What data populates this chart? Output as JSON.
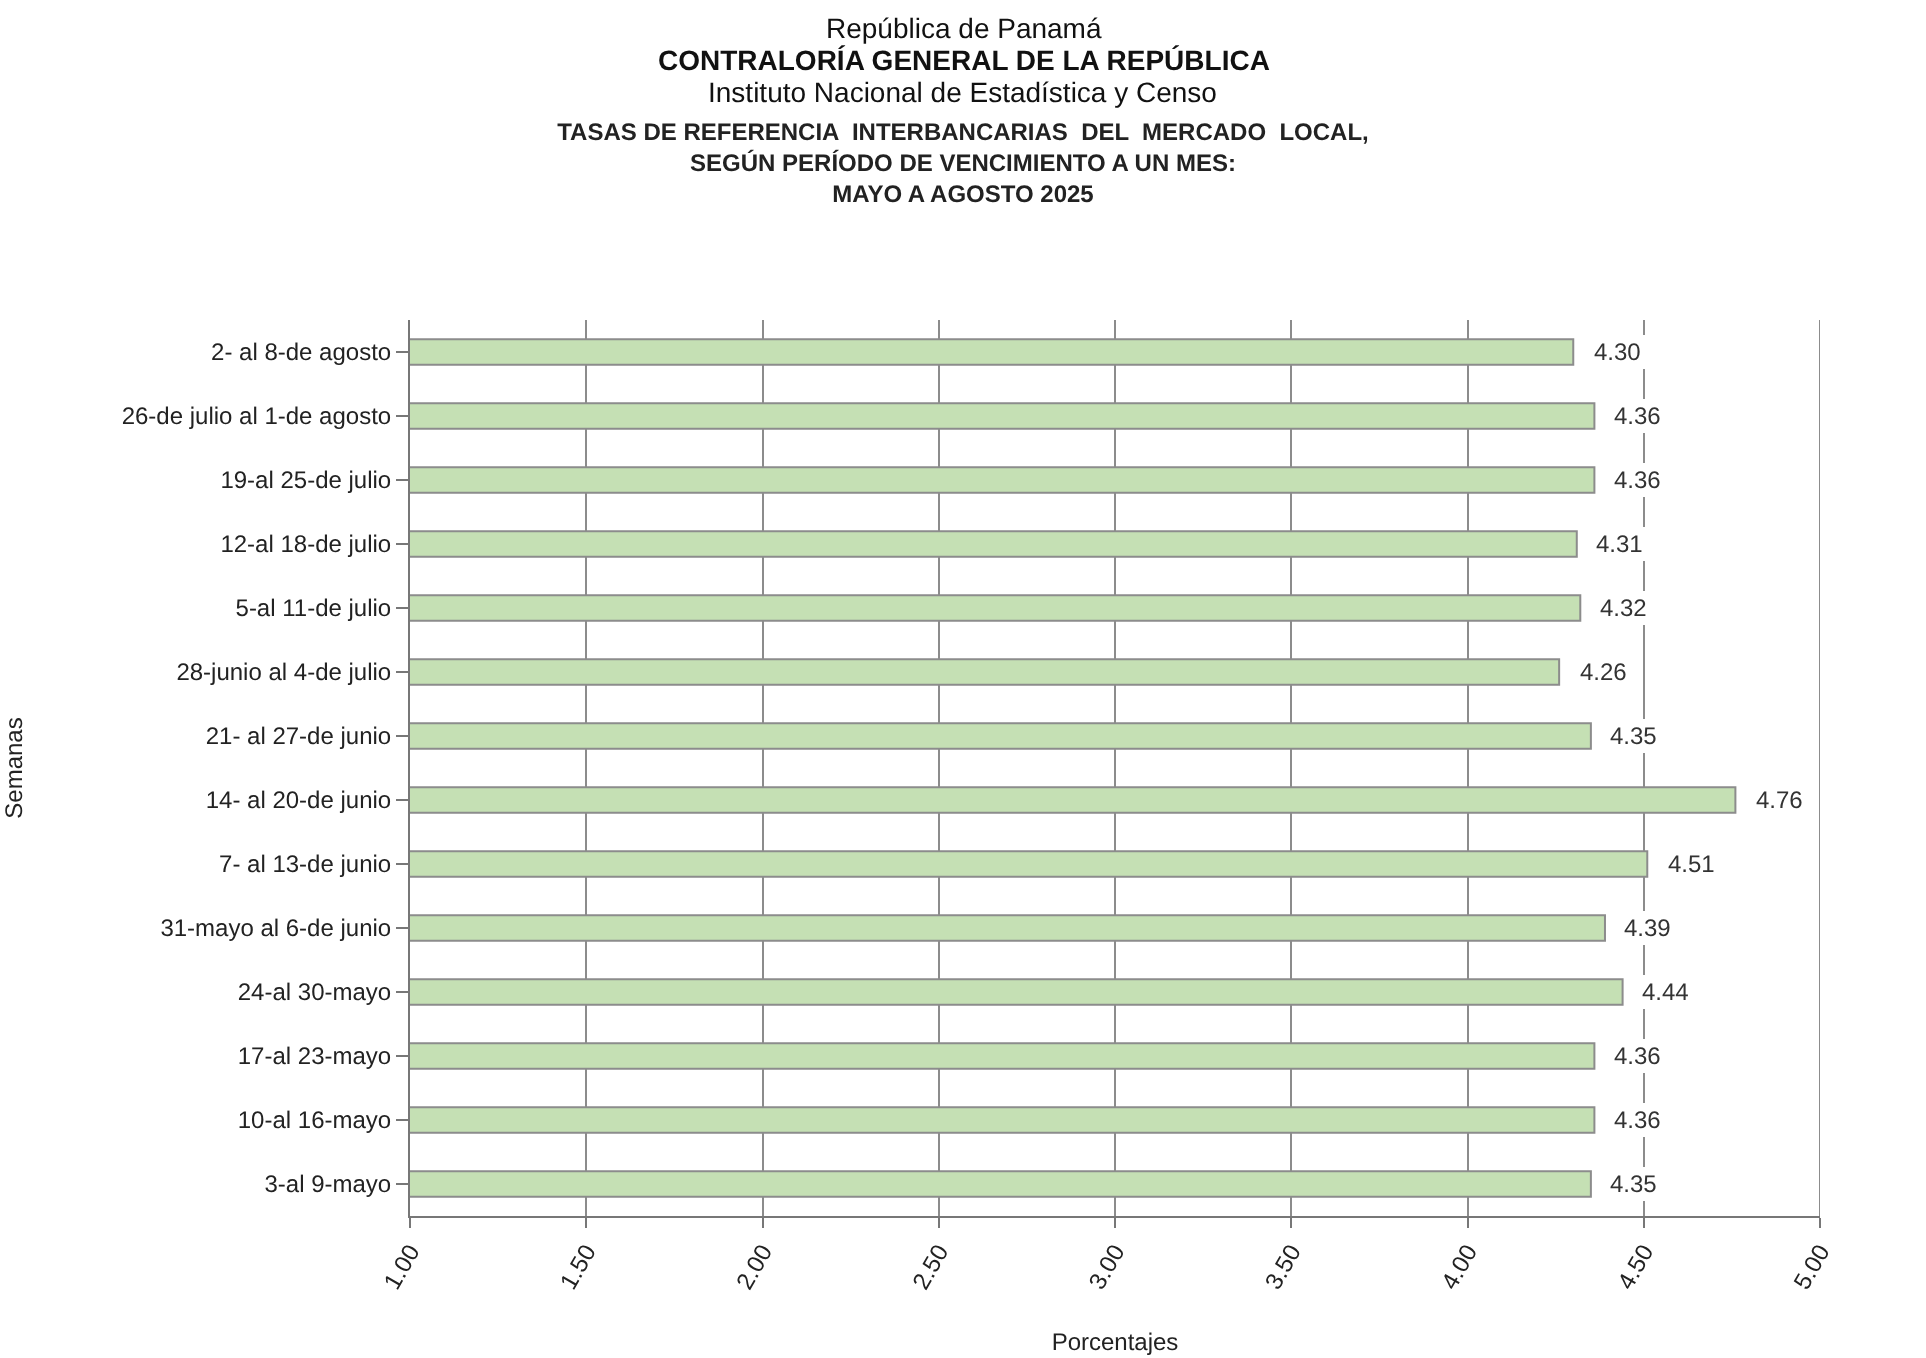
{
  "chart_data": {
    "type": "bar",
    "orientation": "horizontal",
    "title": "TASAS DE REFERENCIA  INTERBANCARIAS  DEL  MERCADO  LOCAL,\nSEGÚN PERÍODO DE VENCIMIENTO A UN MES:\nMAYO A AGOSTO 2025",
    "annotations": [
      "República de Panamá",
      "CONTRALORÍA GENERAL DE LA REPÚBLICA",
      "Instituto Nacional de Estadística y Censo"
    ],
    "xlabel": "Porcentajes",
    "ylabel": "Semanas",
    "categories": [
      "2- al 8-de agosto",
      "26-de julio al 1-de agosto",
      "19-al 25-de julio",
      "12-al 18-de julio",
      "5-al 11-de julio",
      "28-junio al 4-de julio",
      "21- al 27-de junio",
      "14- al 20-de junio",
      "7- al 13-de junio",
      "31-mayo al 6-de junio",
      "24-al 30-mayo",
      "17-al 23-mayo",
      "10-al 16-mayo",
      "3-al 9-mayo"
    ],
    "values": [
      4.3,
      4.36,
      4.36,
      4.31,
      4.32,
      4.26,
      4.35,
      4.76,
      4.51,
      4.39,
      4.44,
      4.36,
      4.36,
      4.35
    ],
    "value_labels": [
      "4.30",
      "4.36",
      "4.36",
      "4.31",
      "4.32",
      "4.26",
      "4.35",
      "4.76",
      "4.51",
      "4.39",
      "4.44",
      "4.36",
      "4.36",
      "4.35"
    ],
    "color": "#c5e0b4",
    "xlim": [
      1,
      5
    ],
    "xticks": [
      {
        "value": 1,
        "label": "1.00"
      },
      {
        "value": 1.5,
        "label": "1.50"
      },
      {
        "value": 2,
        "label": "2.00"
      },
      {
        "value": 2.5,
        "label": "2.50"
      },
      {
        "value": 3,
        "label": "3.00"
      },
      {
        "value": 3.5,
        "label": "3.50"
      },
      {
        "value": 4,
        "label": "4.00"
      },
      {
        "value": 4.5,
        "label": "4.50"
      },
      {
        "value": 5,
        "label": "5.00"
      }
    ],
    "grid": "x"
  }
}
